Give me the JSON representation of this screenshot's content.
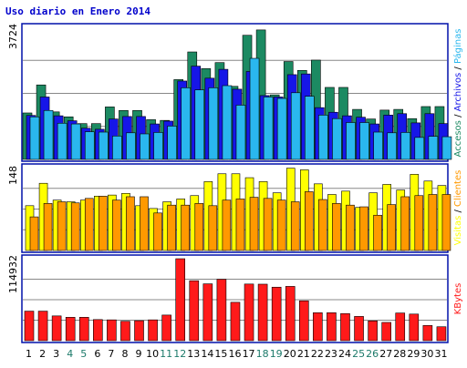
{
  "title": "Uso diario en Enero 2014",
  "colors": {
    "frame": "#0011aa",
    "grid": "#888888",
    "visitas": "#ffff00",
    "clientes": "#ff9900",
    "accesos": "#1c8a62",
    "archivos": "#1616e8",
    "paginas": "#2ab7ee",
    "kbytes": "#ff1a1a",
    "weekend_label": "#1c7a6a",
    "weekday_label": "#000000"
  },
  "chart_data": [
    {
      "type": "bar",
      "panel": "hits",
      "ymax_label": "3724",
      "ylim": [
        0,
        3724
      ],
      "legend": [
        {
          "text": "Accesos",
          "color": "#1c8a62"
        },
        {
          "text": "Archivos",
          "color": "#1616e8"
        },
        {
          "text": "Páginas",
          "color": "#2ab7ee"
        }
      ],
      "series": [
        {
          "name": "Accesos",
          "color": "#1c8a62",
          "values": [
            1310,
            2100,
            1340,
            1200,
            1010,
            1010,
            1480,
            1380,
            1380,
            1120,
            1100,
            2250,
            3030,
            2560,
            2730,
            2060,
            3500,
            3650,
            1820,
            2760,
            2510,
            2800,
            2030,
            2030,
            1410,
            1140,
            1390,
            1410,
            1150,
            1490,
            1490
          ]
        },
        {
          "name": "Archivos",
          "color": "#1616e8",
          "values": [
            1240,
            1760,
            1230,
            1090,
            880,
            850,
            1140,
            1210,
            1210,
            1000,
            1080,
            2210,
            2630,
            2290,
            2540,
            1980,
            2480,
            1800,
            1760,
            2390,
            2410,
            1460,
            1330,
            1230,
            1190,
            1000,
            1250,
            1290,
            1030,
            1290,
            1010
          ]
        },
        {
          "name": "Páginas",
          "color": "#2ab7ee",
          "values": [
            1200,
            1380,
            1020,
            1000,
            780,
            770,
            660,
            750,
            720,
            760,
            940,
            2020,
            1960,
            2020,
            2080,
            1530,
            2850,
            1760,
            1720,
            1880,
            1780,
            1250,
            1150,
            1040,
            1040,
            770,
            750,
            760,
            620,
            650,
            640
          ]
        }
      ]
    },
    {
      "type": "bar",
      "panel": "visits",
      "ymax_label": "148",
      "ylim": [
        0,
        148
      ],
      "legend": [
        {
          "text": "Visitas",
          "color": "#ffff00"
        },
        {
          "text": "Clientes",
          "color": "#ff9900"
        }
      ],
      "series": [
        {
          "name": "Visitas",
          "color": "#ffff00",
          "values": [
            80,
            120,
            90,
            87,
            90,
            97,
            99,
            102,
            80,
            75,
            87,
            92,
            98,
            123,
            137,
            137,
            130,
            123,
            103,
            147,
            144,
            119,
            100,
            106,
            77,
            103,
            118,
            108,
            136,
            124,
            116
          ]
        },
        {
          "name": "Clientes",
          "color": "#ff9900",
          "values": [
            60,
            84,
            87,
            85,
            93,
            97,
            90,
            96,
            96,
            67,
            81,
            81,
            84,
            80,
            90,
            92,
            95,
            93,
            90,
            87,
            105,
            91,
            84,
            81,
            78,
            63,
            82,
            96,
            98,
            100,
            100
          ]
        }
      ]
    },
    {
      "type": "bar",
      "panel": "kbytes",
      "ymax_label": "114932",
      "ylim": [
        0,
        114932
      ],
      "legend": [
        {
          "text": "KBytes",
          "color": "#ff1a1a"
        }
      ],
      "series": [
        {
          "name": "KBytes",
          "color": "#ff1a1a",
          "values": [
            41400,
            41400,
            34700,
            32800,
            32800,
            29600,
            29200,
            27200,
            28000,
            29200,
            35900,
            114900,
            84100,
            79700,
            86100,
            53800,
            79400,
            79200,
            75000,
            76100,
            55900,
            39200,
            39200,
            38000,
            34000,
            27700,
            25600,
            38800,
            37300,
            21300,
            19500
          ]
        }
      ]
    },
    {
      "type": "table",
      "panel": "days",
      "categories": [
        "1",
        "2",
        "3",
        "4",
        "5",
        "6",
        "7",
        "8",
        "9",
        "10",
        "11",
        "12",
        "13",
        "14",
        "15",
        "16",
        "17",
        "18",
        "19",
        "20",
        "21",
        "22",
        "23",
        "24",
        "25",
        "26",
        "27",
        "28",
        "29",
        "30",
        "31"
      ],
      "weekend": [
        "4",
        "5",
        "11",
        "12",
        "18",
        "19",
        "25",
        "26"
      ]
    }
  ]
}
